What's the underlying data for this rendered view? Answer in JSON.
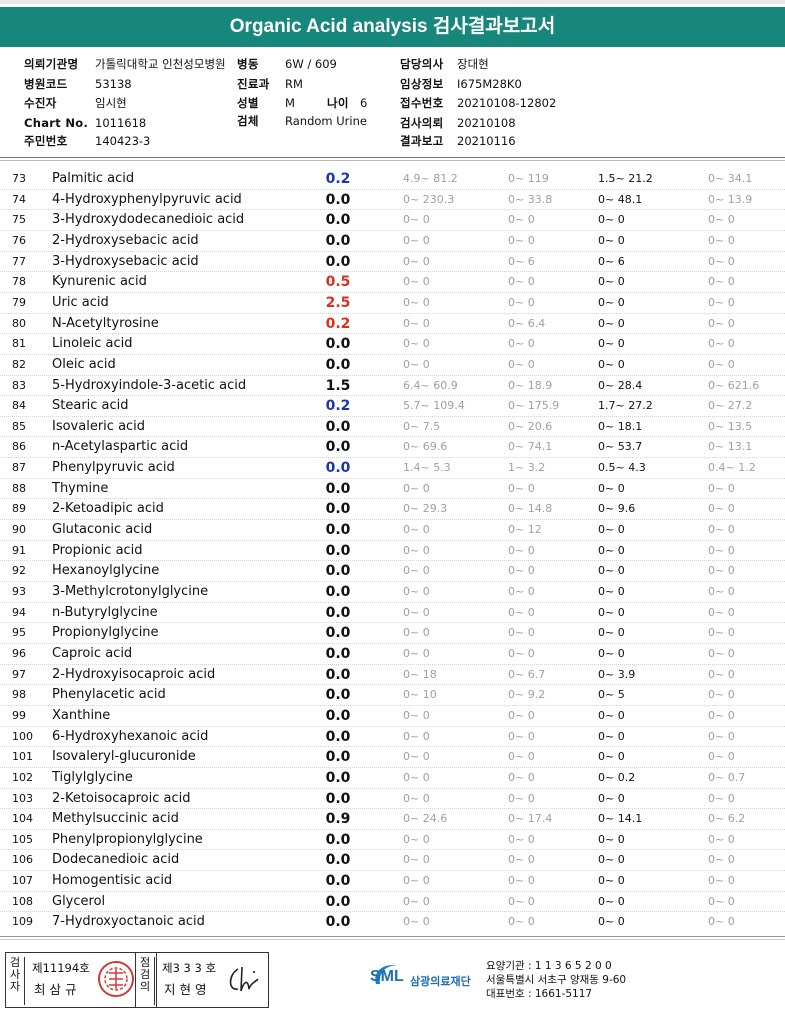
{
  "title": "Organic Acid analysis 검사결과보고서",
  "header": {
    "requesting_institution_label": "의뢰기관명",
    "requesting_institution": "가톨릭대학교 인천성모병원",
    "ward_label": "병동",
    "ward": "6W / 609",
    "doctor_label": "담당의사",
    "doctor": "장대현",
    "hospital_code_label": "병원코드",
    "hospital_code": "53138",
    "department_label": "진료과",
    "department": "RM",
    "clinical_info_label": "임상정보",
    "clinical_info": "I675M28K0",
    "recipient_label": "수진자",
    "recipient": "임시현",
    "sex_label": "성별",
    "sex": "M",
    "age_label": "나이",
    "age": "6",
    "receipt_no_label": "접수번호",
    "receipt_no": "20210108-12802",
    "chart_no_label": "Chart No.",
    "chart_no": "1011618",
    "specimen_label": "검체",
    "specimen": "Random Urine",
    "request_date_label": "검사의뢰",
    "request_date": "20210108",
    "id_label": "주민번호",
    "id_no": "140423-3",
    "report_date_label": "결과보고",
    "report_date": "20210116"
  },
  "rows": [
    {
      "no": "73",
      "name": "Palmitic acid",
      "result": "0.2",
      "flag": "blue",
      "r1": "4.9~ 81.2",
      "r2": "0~ 119",
      "r3": "1.5~ 21.2",
      "r4": "0~ 34.1"
    },
    {
      "no": "74",
      "name": "4-Hydroxyphenylpyruvic acid",
      "result": "0.0",
      "flag": "normal",
      "r1": "0~ 230.3",
      "r2": "0~ 33.8",
      "r3": "0~ 48.1",
      "r4": "0~ 13.9"
    },
    {
      "no": "75",
      "name": "3-Hydroxydodecanedioic acid",
      "result": "0.0",
      "flag": "normal",
      "r1": "0~ 0",
      "r2": "0~ 0",
      "r3": "0~ 0",
      "r4": "0~ 0"
    },
    {
      "no": "76",
      "name": "2-Hydroxysebacic acid",
      "result": "0.0",
      "flag": "normal",
      "r1": "0~ 0",
      "r2": "0~ 0",
      "r3": "0~ 0",
      "r4": "0~ 0"
    },
    {
      "no": "77",
      "name": "3-Hydroxysebacic acid",
      "result": "0.0",
      "flag": "normal",
      "r1": "0~ 0",
      "r2": "0~ 6",
      "r3": "0~ 6",
      "r4": "0~ 0"
    },
    {
      "no": "78",
      "name": "Kynurenic acid",
      "result": "0.5",
      "flag": "red",
      "r1": "0~ 0",
      "r2": "0~ 0",
      "r3": "0~ 0",
      "r4": "0~ 0"
    },
    {
      "no": "79",
      "name": "Uric acid",
      "result": "2.5",
      "flag": "red",
      "r1": "0~ 0",
      "r2": "0~ 0",
      "r3": "0~ 0",
      "r4": "0~ 0"
    },
    {
      "no": "80",
      "name": "N-Acetyltyrosine",
      "result": "0.2",
      "flag": "red",
      "r1": "0~ 0",
      "r2": "0~ 6.4",
      "r3": "0~ 0",
      "r4": "0~ 0"
    },
    {
      "no": "81",
      "name": "Linoleic acid",
      "result": "0.0",
      "flag": "normal",
      "r1": "0~ 0",
      "r2": "0~ 0",
      "r3": "0~ 0",
      "r4": "0~ 0"
    },
    {
      "no": "82",
      "name": "Oleic acid",
      "result": "0.0",
      "flag": "normal",
      "r1": "0~ 0",
      "r2": "0~ 0",
      "r3": "0~ 0",
      "r4": "0~ 0"
    },
    {
      "no": "83",
      "name": "5-Hydroxyindole-3-acetic acid",
      "result": "1.5",
      "flag": "normal",
      "r1": "6.4~ 60.9",
      "r2": "0~ 18.9",
      "r3": "0~ 28.4",
      "r4": "0~ 621.6"
    },
    {
      "no": "84",
      "name": "Stearic acid",
      "result": "0.2",
      "flag": "blue",
      "r1": "5.7~ 109.4",
      "r2": "0~ 175.9",
      "r3": "1.7~ 27.2",
      "r4": "0~ 27.2"
    },
    {
      "no": "85",
      "name": "Isovaleric acid",
      "result": "0.0",
      "flag": "normal",
      "r1": "0~ 7.5",
      "r2": "0~ 20.6",
      "r3": "0~ 18.1",
      "r4": "0~ 13.5"
    },
    {
      "no": "86",
      "name": "n-Acetylaspartic acid",
      "result": "0.0",
      "flag": "normal",
      "r1": "0~ 69.6",
      "r2": "0~ 74.1",
      "r3": "0~ 53.7",
      "r4": "0~ 13.1"
    },
    {
      "no": "87",
      "name": "Phenylpyruvic acid",
      "result": "0.0",
      "flag": "blue",
      "r1": "1.4~ 5.3",
      "r2": "1~ 3.2",
      "r3": "0.5~ 4.3",
      "r4": "0.4~ 1.2"
    },
    {
      "no": "88",
      "name": "Thymine",
      "result": "0.0",
      "flag": "normal",
      "r1": "0~ 0",
      "r2": "0~ 0",
      "r3": "0~ 0",
      "r4": "0~ 0"
    },
    {
      "no": "89",
      "name": "2-Ketoadipic acid",
      "result": "0.0",
      "flag": "normal",
      "r1": "0~ 29.3",
      "r2": "0~ 14.8",
      "r3": "0~ 9.6",
      "r4": "0~ 0"
    },
    {
      "no": "90",
      "name": "Glutaconic acid",
      "result": "0.0",
      "flag": "normal",
      "r1": "0~ 0",
      "r2": "0~ 12",
      "r3": "0~ 0",
      "r4": "0~ 0"
    },
    {
      "no": "91",
      "name": "Propionic acid",
      "result": "0.0",
      "flag": "normal",
      "r1": "0~ 0",
      "r2": "0~ 0",
      "r3": "0~ 0",
      "r4": "0~ 0"
    },
    {
      "no": "92",
      "name": "Hexanoylglycine",
      "result": "0.0",
      "flag": "normal",
      "r1": "0~ 0",
      "r2": "0~ 0",
      "r3": "0~ 0",
      "r4": "0~ 0"
    },
    {
      "no": "93",
      "name": "3-Methylcrotonylglycine",
      "result": "0.0",
      "flag": "normal",
      "r1": "0~ 0",
      "r2": "0~ 0",
      "r3": "0~ 0",
      "r4": "0~ 0"
    },
    {
      "no": "94",
      "name": "n-Butyrylglycine",
      "result": "0.0",
      "flag": "normal",
      "r1": "0~ 0",
      "r2": "0~ 0",
      "r3": "0~ 0",
      "r4": "0~ 0"
    },
    {
      "no": "95",
      "name": "Propionylglycine",
      "result": "0.0",
      "flag": "normal",
      "r1": "0~ 0",
      "r2": "0~ 0",
      "r3": "0~ 0",
      "r4": "0~ 0"
    },
    {
      "no": "96",
      "name": "Caproic acid",
      "result": "0.0",
      "flag": "normal",
      "r1": "0~ 0",
      "r2": "0~ 0",
      "r3": "0~ 0",
      "r4": "0~ 0"
    },
    {
      "no": "97",
      "name": "2-Hydroxyisocaproic acid",
      "result": "0.0",
      "flag": "normal",
      "r1": "0~ 18",
      "r2": "0~ 6.7",
      "r3": "0~ 3.9",
      "r4": "0~ 0"
    },
    {
      "no": "98",
      "name": "Phenylacetic acid",
      "result": "0.0",
      "flag": "normal",
      "r1": "0~ 10",
      "r2": "0~ 9.2",
      "r3": "0~ 5",
      "r4": "0~ 0"
    },
    {
      "no": "99",
      "name": "Xanthine",
      "result": "0.0",
      "flag": "normal",
      "r1": "0~ 0",
      "r2": "0~ 0",
      "r3": "0~ 0",
      "r4": "0~ 0"
    },
    {
      "no": "100",
      "name": "6-Hydroxyhexanoic acid",
      "result": "0.0",
      "flag": "normal",
      "r1": "0~ 0",
      "r2": "0~ 0",
      "r3": "0~ 0",
      "r4": "0~ 0"
    },
    {
      "no": "101",
      "name": "Isovaleryl-glucuronide",
      "result": "0.0",
      "flag": "normal",
      "r1": "0~ 0",
      "r2": "0~ 0",
      "r3": "0~ 0",
      "r4": "0~ 0"
    },
    {
      "no": "102",
      "name": "Tiglylglycine",
      "result": "0.0",
      "flag": "normal",
      "r1": "0~ 0",
      "r2": "0~ 0",
      "r3": "0~ 0.2",
      "r4": "0~ 0.7"
    },
    {
      "no": "103",
      "name": "2-Ketoisocaproic acid",
      "result": "0.0",
      "flag": "normal",
      "r1": "0~ 0",
      "r2": "0~ 0",
      "r3": "0~ 0",
      "r4": "0~ 0"
    },
    {
      "no": "104",
      "name": "Methylsuccinic acid",
      "result": "0.9",
      "flag": "normal",
      "r1": "0~ 24.6",
      "r2": "0~ 17.4",
      "r3": "0~ 14.1",
      "r4": "0~ 6.2"
    },
    {
      "no": "105",
      "name": "Phenylpropionylglycine",
      "result": "0.0",
      "flag": "normal",
      "r1": "0~ 0",
      "r2": "0~ 0",
      "r3": "0~ 0",
      "r4": "0~ 0"
    },
    {
      "no": "106",
      "name": "Dodecanedioic acid",
      "result": "0.0",
      "flag": "normal",
      "r1": "0~ 0",
      "r2": "0~ 0",
      "r3": "0~ 0",
      "r4": "0~ 0"
    },
    {
      "no": "107",
      "name": "Homogentisic acid",
      "result": "0.0",
      "flag": "normal",
      "r1": "0~ 0",
      "r2": "0~ 0",
      "r3": "0~ 0",
      "r4": "0~ 0"
    },
    {
      "no": "108",
      "name": "Glycerol",
      "result": "0.0",
      "flag": "normal",
      "r1": "0~ 0",
      "r2": "0~ 0",
      "r3": "0~ 0",
      "r4": "0~ 0"
    },
    {
      "no": "109",
      "name": "7-Hydroxyoctanoic acid",
      "result": "0.0",
      "flag": "normal",
      "r1": "0~ 0",
      "r2": "0~ 0",
      "r3": "0~ 0",
      "r4": "0~ 0"
    }
  ],
  "footer": {
    "examiner_label": "검사자",
    "examiner_no": "제11194호",
    "examiner_name": "최 삼 규",
    "reviewer_label": "점검의",
    "reviewer_no": "제3 3 3 호",
    "reviewer_name": "지 현 영",
    "logo_text": "SML",
    "org_name": "삼광의료재단",
    "care_institution": "요양기관 : 1 1 3 6 5 2 0 0",
    "address": "서울특별시 서초구 양재동 9-60",
    "phone": "대표번호 : 1661-5117"
  },
  "colors": {
    "banner": "#17877c",
    "result_red": "#d9301f",
    "result_blue": "#1b36b0",
    "range_gray": "#a0a0a0"
  }
}
